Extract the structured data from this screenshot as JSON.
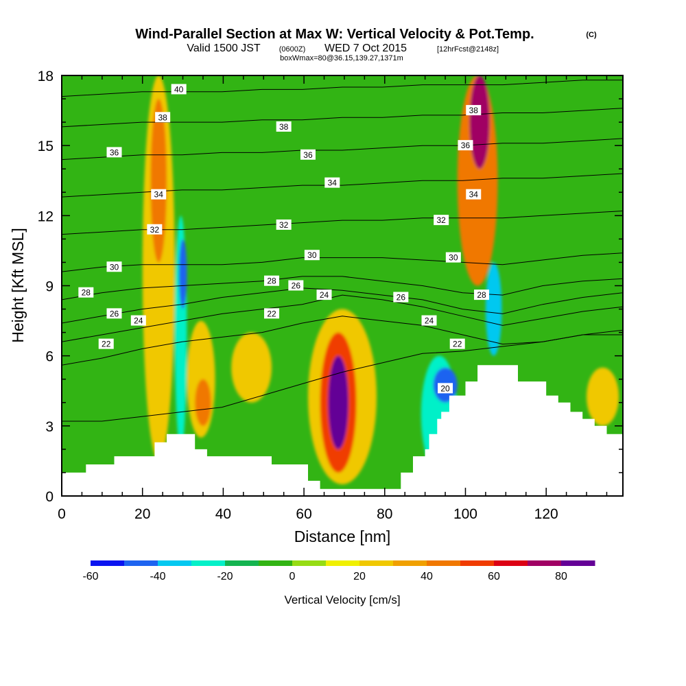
{
  "header": {
    "title": "Wind-Parallel Section at Max W: Vertical Velocity & Pot.Temp.",
    "copyright": "(C)",
    "valid_prefix": "Valid 1500 JST",
    "utc": "(0600Z)",
    "valid_date": "WED 7 Oct 2015",
    "forecast": "[12hrFcst@2148z]",
    "box_info": "boxWmax=80@36.15,139.27,1371m"
  },
  "chart_data": {
    "type": "heatmap",
    "xlabel": "Distance [nm]",
    "ylabel": "Height [Kft MSL]",
    "xlim": [
      0,
      139
    ],
    "ylim": [
      0,
      18
    ],
    "x_ticks": [
      0,
      20,
      40,
      60,
      80,
      100,
      120
    ],
    "y_ticks": [
      0,
      3,
      6,
      9,
      12,
      15,
      18
    ],
    "colorbar": {
      "label": "Vertical Velocity [cm/s]",
      "range": [
        -60,
        90
      ],
      "tick_values": [
        -60,
        -40,
        -20,
        0,
        20,
        40,
        60,
        80
      ],
      "colors": [
        "#0a14f0",
        "#1e64f0",
        "#05c8f0",
        "#05f0c8",
        "#14b450",
        "#32b414",
        "#96dc14",
        "#f0f000",
        "#f0c800",
        "#f0a000",
        "#f07800",
        "#f03c00",
        "#dc0014",
        "#a00064",
        "#640096"
      ]
    },
    "vertical_velocity_cells": [
      {
        "x": [
          20,
          28
        ],
        "y": [
          1.5,
          18
        ],
        "w": 25
      },
      {
        "x": [
          22,
          26
        ],
        "y": [
          10,
          17
        ],
        "w": 40
      },
      {
        "x": [
          28,
          31
        ],
        "y": [
          2,
          12
        ],
        "w": -25
      },
      {
        "x": [
          29,
          31
        ],
        "y": [
          8,
          11
        ],
        "w": -45
      },
      {
        "x": [
          31,
          38
        ],
        "y": [
          2.5,
          7.5
        ],
        "w": 25
      },
      {
        "x": [
          33,
          37
        ],
        "y": [
          3,
          5
        ],
        "w": 40
      },
      {
        "x": [
          42,
          52
        ],
        "y": [
          4,
          7
        ],
        "w": 20
      },
      {
        "x": [
          61,
          78
        ],
        "y": [
          0.5,
          8
        ],
        "w": 20
      },
      {
        "x": [
          64,
          73
        ],
        "y": [
          1,
          7
        ],
        "w": 50
      },
      {
        "x": [
          66,
          71
        ],
        "y": [
          2,
          6
        ],
        "w": 80
      },
      {
        "x": [
          89,
          98
        ],
        "y": [
          1,
          6
        ],
        "w": -30
      },
      {
        "x": [
          92,
          98
        ],
        "y": [
          4,
          5.5
        ],
        "w": -45
      },
      {
        "x": [
          98,
          108
        ],
        "y": [
          9,
          18
        ],
        "w": 40
      },
      {
        "x": [
          101,
          106
        ],
        "y": [
          14,
          18
        ],
        "w": 75
      },
      {
        "x": [
          105,
          109
        ],
        "y": [
          6,
          10
        ],
        "w": -35
      },
      {
        "x": [
          130,
          138
        ],
        "y": [
          3,
          5.5
        ],
        "w": 20
      }
    ],
    "theta_contours": [
      {
        "value": 20,
        "y": [
          3.2,
          3.2,
          3.4,
          3.6,
          3.8,
          4.3,
          4.8,
          5.3,
          5.7,
          6.1,
          6.2,
          6.4,
          6.6,
          6.9,
          6.9
        ]
      },
      {
        "value": 22,
        "y": [
          5.6,
          5.9,
          6.3,
          6.6,
          6.8,
          7.0,
          7.4,
          7.7,
          7.5,
          7.3,
          6.9,
          6.5,
          6.6,
          6.9,
          7.1
        ]
      },
      {
        "value": 24,
        "y": [
          6.6,
          6.9,
          7.2,
          7.5,
          7.8,
          8.0,
          8.2,
          8.6,
          8.4,
          8.1,
          7.7,
          7.3,
          7.6,
          7.9,
          8.1
        ]
      },
      {
        "value": 26,
        "y": [
          7.4,
          7.7,
          8.0,
          8.2,
          8.5,
          8.7,
          8.9,
          8.8,
          8.6,
          8.4,
          8.0,
          7.8,
          8.2,
          8.5,
          8.7
        ]
      },
      {
        "value": 28,
        "y": [
          8.4,
          8.7,
          8.9,
          9.0,
          9.1,
          9.2,
          9.4,
          9.4,
          9.2,
          9.0,
          8.7,
          8.6,
          9.0,
          9.2,
          9.3
        ]
      },
      {
        "value": 30,
        "y": [
          9.6,
          9.8,
          9.9,
          9.9,
          9.9,
          10.0,
          10.2,
          10.2,
          10.2,
          10.1,
          10.0,
          9.9,
          10.1,
          10.3,
          10.4
        ]
      },
      {
        "value": 32,
        "y": [
          11.2,
          11.3,
          11.4,
          11.4,
          11.5,
          11.6,
          11.7,
          11.8,
          11.8,
          11.9,
          11.9,
          11.9,
          12.0,
          12.1,
          12.2
        ]
      },
      {
        "value": 34,
        "y": [
          12.8,
          12.9,
          13.0,
          13.1,
          13.1,
          13.2,
          13.3,
          13.3,
          13.4,
          13.5,
          13.5,
          13.6,
          13.6,
          13.7,
          13.8
        ]
      },
      {
        "value": 36,
        "y": [
          14.4,
          14.5,
          14.6,
          14.6,
          14.7,
          14.7,
          14.8,
          14.8,
          14.9,
          15.0,
          15.0,
          15.1,
          15.1,
          15.2,
          15.3
        ]
      },
      {
        "value": 38,
        "y": [
          15.8,
          15.9,
          16.0,
          16.0,
          16.0,
          16.1,
          16.1,
          16.2,
          16.2,
          16.3,
          16.3,
          16.4,
          16.4,
          16.5,
          16.6
        ]
      },
      {
        "value": 40,
        "y": [
          17.1,
          17.2,
          17.3,
          17.3,
          17.3,
          17.4,
          17.4,
          17.5,
          17.5,
          17.6,
          17.6,
          17.6,
          17.7,
          17.8,
          17.8
        ]
      }
    ],
    "contour_labels": [
      {
        "text": "40",
        "x": 29,
        "y": 17.4
      },
      {
        "text": "38",
        "x": 25,
        "y": 16.2
      },
      {
        "text": "38",
        "x": 55,
        "y": 15.8
      },
      {
        "text": "38",
        "x": 102,
        "y": 16.5
      },
      {
        "text": "36",
        "x": 13,
        "y": 14.7
      },
      {
        "text": "36",
        "x": 61,
        "y": 14.6
      },
      {
        "text": "36",
        "x": 100,
        "y": 15.0
      },
      {
        "text": "34",
        "x": 24,
        "y": 12.9
      },
      {
        "text": "34",
        "x": 67,
        "y": 13.4
      },
      {
        "text": "34",
        "x": 102,
        "y": 12.9
      },
      {
        "text": "32",
        "x": 23,
        "y": 11.4
      },
      {
        "text": "32",
        "x": 55,
        "y": 11.6
      },
      {
        "text": "32",
        "x": 94,
        "y": 11.8
      },
      {
        "text": "30",
        "x": 13,
        "y": 9.8
      },
      {
        "text": "30",
        "x": 62,
        "y": 10.3
      },
      {
        "text": "30",
        "x": 97,
        "y": 10.2
      },
      {
        "text": "28",
        "x": 6,
        "y": 8.7
      },
      {
        "text": "28",
        "x": 52,
        "y": 9.2
      },
      {
        "text": "28",
        "x": 104,
        "y": 8.6
      },
      {
        "text": "26",
        "x": 13,
        "y": 7.8
      },
      {
        "text": "26",
        "x": 58,
        "y": 9.0
      },
      {
        "text": "26",
        "x": 84,
        "y": 8.5
      },
      {
        "text": "24",
        "x": 19,
        "y": 7.5
      },
      {
        "text": "24",
        "x": 65,
        "y": 8.6
      },
      {
        "text": "24",
        "x": 91,
        "y": 7.5
      },
      {
        "text": "22",
        "x": 11,
        "y": 6.5
      },
      {
        "text": "22",
        "x": 52,
        "y": 7.8
      },
      {
        "text": "22",
        "x": 98,
        "y": 6.5
      },
      {
        "text": "20",
        "x": 95,
        "y": 4.6
      }
    ],
    "terrain": [
      [
        0,
        1.0
      ],
      [
        6,
        1.0
      ],
      [
        6,
        1.35
      ],
      [
        13,
        1.35
      ],
      [
        13,
        1.7
      ],
      [
        23,
        1.7
      ],
      [
        23,
        2.3
      ],
      [
        26,
        2.3
      ],
      [
        26,
        2.65
      ],
      [
        33,
        2.65
      ],
      [
        33,
        2.0
      ],
      [
        36,
        2.0
      ],
      [
        36,
        1.7
      ],
      [
        52,
        1.7
      ],
      [
        52,
        1.35
      ],
      [
        61,
        1.35
      ],
      [
        61,
        0.65
      ],
      [
        64,
        0.65
      ],
      [
        64,
        0.3
      ],
      [
        84,
        0.3
      ],
      [
        84,
        0.65
      ],
      [
        84,
        1.0
      ],
      [
        87,
        1.0
      ],
      [
        87,
        1.7
      ],
      [
        90,
        1.7
      ],
      [
        90,
        2.0
      ],
      [
        91,
        2.0
      ],
      [
        91,
        2.65
      ],
      [
        93,
        2.65
      ],
      [
        93,
        3.3
      ],
      [
        94,
        3.3
      ],
      [
        94,
        3.6
      ],
      [
        96,
        3.6
      ],
      [
        96,
        4.3
      ],
      [
        100,
        4.3
      ],
      [
        100,
        4.9
      ],
      [
        103,
        4.9
      ],
      [
        103,
        5.6
      ],
      [
        113,
        5.6
      ],
      [
        113,
        4.9
      ],
      [
        120,
        4.9
      ],
      [
        120,
        4.3
      ],
      [
        123,
        4.3
      ],
      [
        123,
        4.0
      ],
      [
        126,
        4.0
      ],
      [
        126,
        3.6
      ],
      [
        129,
        3.6
      ],
      [
        129,
        3.3
      ],
      [
        132,
        3.3
      ],
      [
        132,
        3.0
      ],
      [
        135,
        3.0
      ],
      [
        135,
        2.65
      ],
      [
        139,
        2.65
      ]
    ]
  }
}
